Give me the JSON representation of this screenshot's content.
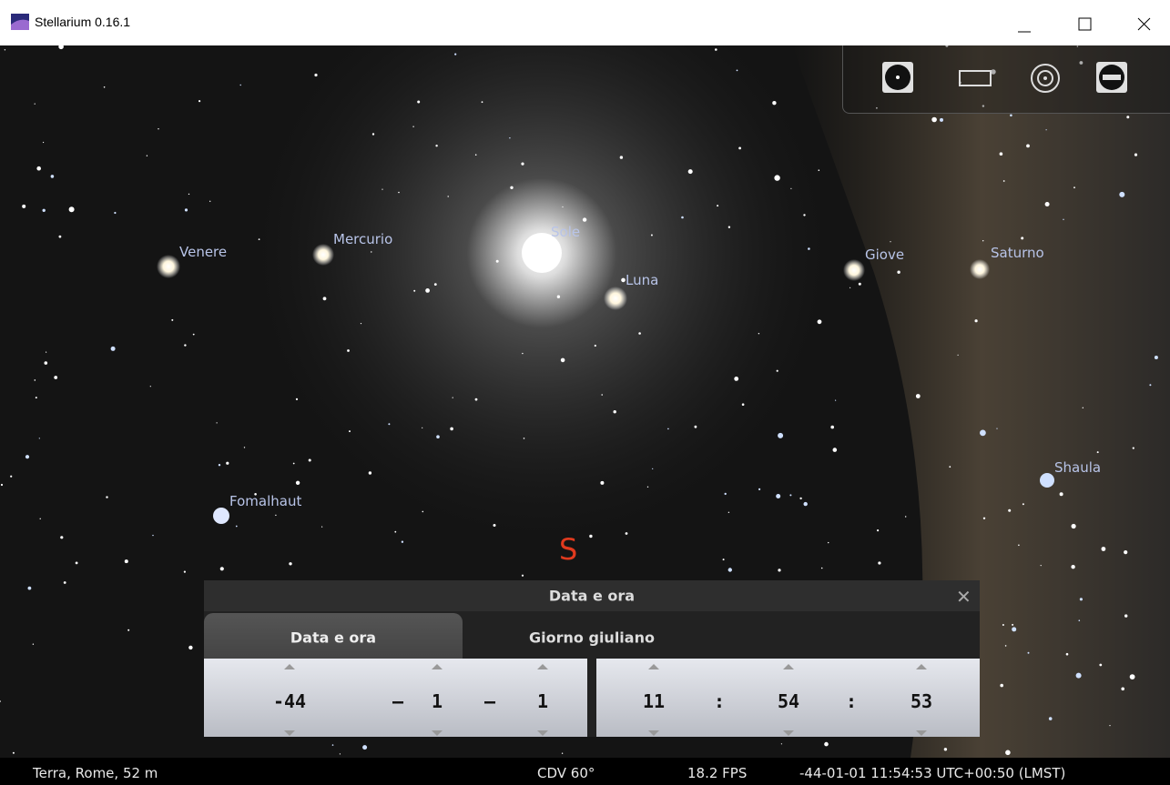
{
  "window": {
    "title": "Stellarium 0.16.1"
  },
  "sky": {
    "labels": [
      "Venere",
      "Mercurio",
      "Sole",
      "Luna",
      "Giove",
      "Saturno",
      "Shaula",
      "Fomalhaut"
    ],
    "cardinal": "S"
  },
  "dialog": {
    "title": "Data e ora",
    "tabs": [
      "Data e ora",
      "Giorno giuliano"
    ],
    "date": [
      "-44",
      "–",
      "1",
      "–",
      "1"
    ],
    "time": [
      "11",
      ":",
      "54",
      ":",
      "53"
    ]
  },
  "status": {
    "location": "Terra, Rome, 52 m",
    "fov": "CDV 60°",
    "fps": "18.2 FPS",
    "datetime": "-44-01-01 11:54:53 UTC+00:50 (LMST)"
  }
}
